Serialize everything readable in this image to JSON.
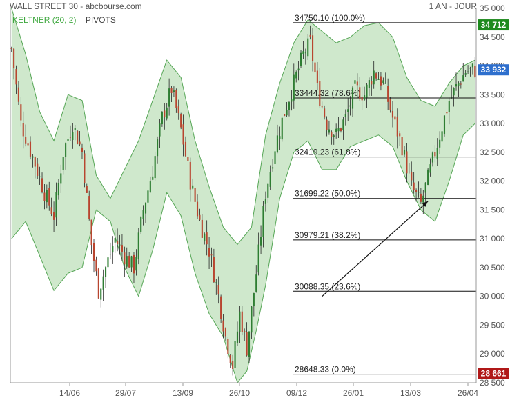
{
  "header": {
    "instrument": "WALL STREET 30 - abcbourse.com",
    "period": "1 AN - JOUR"
  },
  "legend": {
    "keltner": "KELTNER (20, 2)",
    "pivots": "PIVOTS"
  },
  "colors": {
    "up": "#2e7d32",
    "down": "#b8452f",
    "band_fill": "#cfe8cc",
    "band_line": "#56a656",
    "price_badge": "#2e6fcd",
    "high_badge": "#1e8a1e",
    "low_badge": "#b01818"
  },
  "chart_data": {
    "type": "candlestick",
    "ylim": [
      28500,
      35000
    ],
    "y_ticks": [
      28500,
      29000,
      29500,
      30000,
      30500,
      31000,
      31500,
      32000,
      32500,
      33000,
      33500,
      34000,
      34500,
      35000
    ],
    "y_tick_labels": [
      "28 500",
      "29 000",
      "29 500",
      "30 000",
      "30 500",
      "31 000",
      "31 500",
      "32 000",
      "32 500",
      "33 000",
      "33 500",
      "34 000",
      "34 500",
      "35 000"
    ],
    "x_ticks": [
      "14/06",
      "29/07",
      "13/09",
      "26/10",
      "09/12",
      "26/01",
      "13/03",
      "26/04"
    ],
    "close_path": [
      {
        "i": 0,
        "v": 34300
      },
      {
        "i": 4,
        "v": 33000
      },
      {
        "i": 10,
        "v": 32300
      },
      {
        "i": 14,
        "v": 31800
      },
      {
        "i": 18,
        "v": 31400
      },
      {
        "i": 22,
        "v": 32500
      },
      {
        "i": 26,
        "v": 33000
      },
      {
        "i": 30,
        "v": 32500
      },
      {
        "i": 34,
        "v": 30900
      },
      {
        "i": 37,
        "v": 30100
      },
      {
        "i": 40,
        "v": 30500
      },
      {
        "i": 44,
        "v": 31000
      },
      {
        "i": 48,
        "v": 30700
      },
      {
        "i": 52,
        "v": 30500
      },
      {
        "i": 56,
        "v": 31500
      },
      {
        "i": 60,
        "v": 32200
      },
      {
        "i": 64,
        "v": 33100
      },
      {
        "i": 68,
        "v": 33600
      },
      {
        "i": 72,
        "v": 32900
      },
      {
        "i": 76,
        "v": 32000
      },
      {
        "i": 80,
        "v": 31300
      },
      {
        "i": 84,
        "v": 30800
      },
      {
        "i": 88,
        "v": 30000
      },
      {
        "i": 91,
        "v": 29300
      },
      {
        "i": 94,
        "v": 28800
      },
      {
        "i": 97,
        "v": 29700
      },
      {
        "i": 100,
        "v": 29100
      },
      {
        "i": 104,
        "v": 30400
      },
      {
        "i": 108,
        "v": 31800
      },
      {
        "i": 112,
        "v": 32600
      },
      {
        "i": 116,
        "v": 33200
      },
      {
        "i": 120,
        "v": 33700
      },
      {
        "i": 124,
        "v": 34200
      },
      {
        "i": 127,
        "v": 34400
      },
      {
        "i": 130,
        "v": 33600
      },
      {
        "i": 134,
        "v": 33000
      },
      {
        "i": 138,
        "v": 32800
      },
      {
        "i": 142,
        "v": 33100
      },
      {
        "i": 146,
        "v": 33600
      },
      {
        "i": 150,
        "v": 33500
      },
      {
        "i": 154,
        "v": 33900
      },
      {
        "i": 158,
        "v": 33700
      },
      {
        "i": 162,
        "v": 33100
      },
      {
        "i": 166,
        "v": 32600
      },
      {
        "i": 170,
        "v": 31900
      },
      {
        "i": 174,
        "v": 31600
      },
      {
        "i": 178,
        "v": 32200
      },
      {
        "i": 182,
        "v": 32800
      },
      {
        "i": 186,
        "v": 33400
      },
      {
        "i": 190,
        "v": 33700
      },
      {
        "i": 193,
        "v": 33900
      },
      {
        "i": 196,
        "v": 33930
      }
    ],
    "keltner_upper": [
      {
        "i": 0,
        "v": 35000
      },
      {
        "i": 6,
        "v": 34200
      },
      {
        "i": 12,
        "v": 33200
      },
      {
        "i": 18,
        "v": 32700
      },
      {
        "i": 24,
        "v": 33500
      },
      {
        "i": 30,
        "v": 33400
      },
      {
        "i": 36,
        "v": 32100
      },
      {
        "i": 42,
        "v": 31700
      },
      {
        "i": 48,
        "v": 32200
      },
      {
        "i": 54,
        "v": 32700
      },
      {
        "i": 60,
        "v": 33400
      },
      {
        "i": 66,
        "v": 34100
      },
      {
        "i": 72,
        "v": 33800
      },
      {
        "i": 78,
        "v": 32700
      },
      {
        "i": 84,
        "v": 31900
      },
      {
        "i": 90,
        "v": 31200
      },
      {
        "i": 96,
        "v": 30900
      },
      {
        "i": 102,
        "v": 31200
      },
      {
        "i": 108,
        "v": 32800
      },
      {
        "i": 114,
        "v": 33700
      },
      {
        "i": 120,
        "v": 34400
      },
      {
        "i": 126,
        "v": 34800
      },
      {
        "i": 132,
        "v": 34600
      },
      {
        "i": 138,
        "v": 34400
      },
      {
        "i": 144,
        "v": 34500
      },
      {
        "i": 150,
        "v": 34700
      },
      {
        "i": 156,
        "v": 34750
      },
      {
        "i": 162,
        "v": 34500
      },
      {
        "i": 168,
        "v": 33800
      },
      {
        "i": 174,
        "v": 33400
      },
      {
        "i": 180,
        "v": 33300
      },
      {
        "i": 186,
        "v": 33700
      },
      {
        "i": 192,
        "v": 34000
      },
      {
        "i": 197,
        "v": 34100
      }
    ],
    "keltner_lower": [
      {
        "i": 0,
        "v": 31000
      },
      {
        "i": 6,
        "v": 31300
      },
      {
        "i": 12,
        "v": 30700
      },
      {
        "i": 18,
        "v": 30100
      },
      {
        "i": 24,
        "v": 30400
      },
      {
        "i": 30,
        "v": 30500
      },
      {
        "i": 36,
        "v": 31500
      },
      {
        "i": 42,
        "v": 31300
      },
      {
        "i": 48,
        "v": 30500
      },
      {
        "i": 54,
        "v": 30000
      },
      {
        "i": 60,
        "v": 30800
      },
      {
        "i": 66,
        "v": 31800
      },
      {
        "i": 72,
        "v": 31400
      },
      {
        "i": 78,
        "v": 30400
      },
      {
        "i": 84,
        "v": 29700
      },
      {
        "i": 90,
        "v": 29300
      },
      {
        "i": 96,
        "v": 28500
      },
      {
        "i": 100,
        "v": 28700
      },
      {
        "i": 104,
        "v": 29400
      },
      {
        "i": 108,
        "v": 30200
      },
      {
        "i": 114,
        "v": 31700
      },
      {
        "i": 120,
        "v": 32500
      },
      {
        "i": 126,
        "v": 32700
      },
      {
        "i": 132,
        "v": 32200
      },
      {
        "i": 138,
        "v": 32200
      },
      {
        "i": 144,
        "v": 32600
      },
      {
        "i": 150,
        "v": 32700
      },
      {
        "i": 156,
        "v": 32800
      },
      {
        "i": 162,
        "v": 32600
      },
      {
        "i": 168,
        "v": 32000
      },
      {
        "i": 174,
        "v": 31500
      },
      {
        "i": 180,
        "v": 31300
      },
      {
        "i": 186,
        "v": 32000
      },
      {
        "i": 192,
        "v": 32800
      },
      {
        "i": 197,
        "v": 33000
      }
    ],
    "fibonacci": [
      {
        "value": 34750.1,
        "label": "34750.10  (100.0%)"
      },
      {
        "value": 33444.32,
        "label": "33444.32  (78.6%)"
      },
      {
        "value": 32419.23,
        "label": "32419.23  (61.8%)"
      },
      {
        "value": 31699.22,
        "label": "31699.22  (50.0%)"
      },
      {
        "value": 30979.21,
        "label": "30979.21  (38.2%)"
      },
      {
        "value": 30088.35,
        "label": "30088.35  (23.6%)"
      },
      {
        "value": 28648.33,
        "label": "28648.33  (0.0%)"
      }
    ],
    "trend_arrow": {
      "from_i": 132,
      "from_v": 30000,
      "to_i": 177,
      "to_v": 31650
    },
    "badges": [
      {
        "value": 34712,
        "text": "34 712",
        "kind": "high"
      },
      {
        "value": 33932,
        "text": "33 932",
        "kind": "price"
      },
      {
        "value": 28661,
        "text": "28 661",
        "kind": "low"
      }
    ]
  }
}
